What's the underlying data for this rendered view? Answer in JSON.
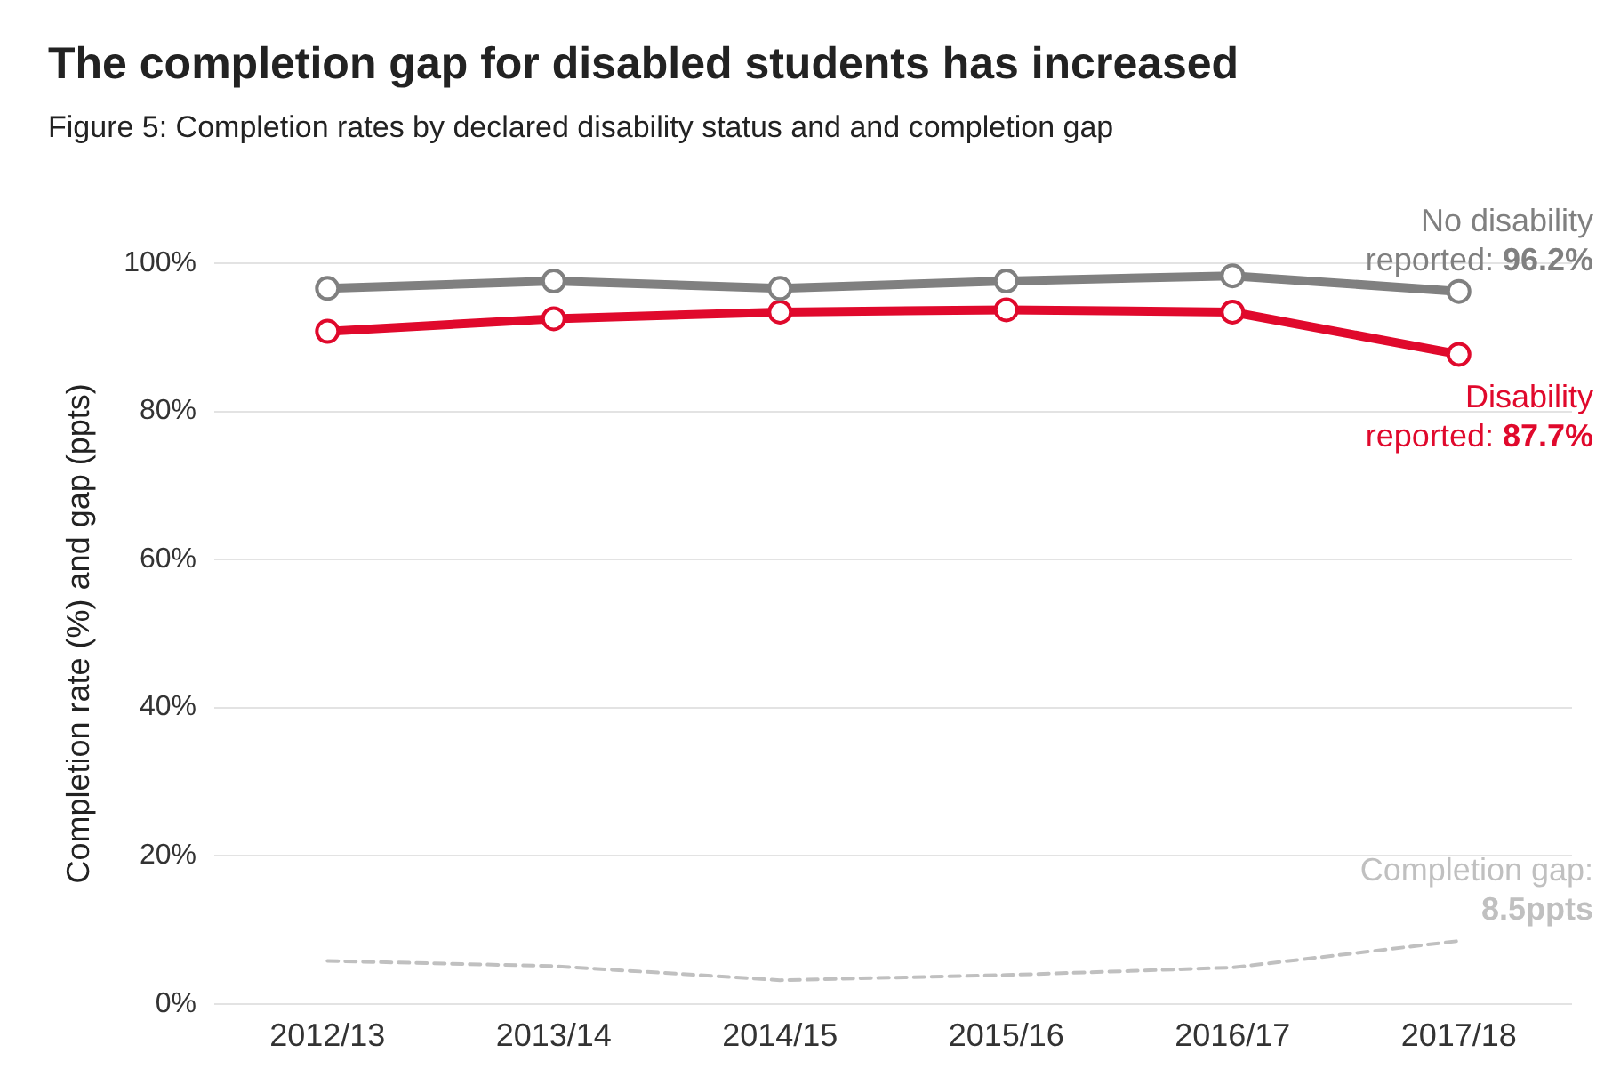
{
  "chart_data": {
    "type": "line",
    "title": "The completion gap for disabled students has increased",
    "subtitle": "Figure 5: Completion rates by declared disability status and and completion gap",
    "ylabel": "Completion rate (%) and gap (ppts)",
    "categories": [
      "2012/13",
      "2013/14",
      "2014/15",
      "2015/16",
      "2016/17",
      "2017/18"
    ],
    "series": [
      {
        "name": "No disability reported:",
        "color": "#808080",
        "marker": "circle",
        "line_style": "solid",
        "values": [
          96.6,
          97.6,
          96.6,
          97.6,
          98.3,
          96.2
        ],
        "value_labels": [
          null,
          null,
          null,
          null,
          null,
          "96.2%"
        ]
      },
      {
        "name": "Disability reported:",
        "color": "#e0092c",
        "marker": "circle",
        "line_style": "solid",
        "values": [
          90.8,
          92.5,
          93.4,
          93.7,
          93.4,
          87.7
        ],
        "value_labels": [
          null,
          null,
          null,
          null,
          null,
          "87.7%"
        ]
      },
      {
        "name": "Completion gap:",
        "color": "#c0c0c0",
        "marker": "none",
        "line_style": "dashed",
        "values": [
          5.8,
          5.1,
          3.2,
          3.9,
          4.9,
          8.5
        ],
        "value_labels": [
          null,
          null,
          null,
          null,
          null,
          "8.5ppts"
        ]
      }
    ],
    "ylim": [
      0,
      100
    ],
    "yticks": [
      {
        "value": 0,
        "label": "0%"
      },
      {
        "value": 20,
        "label": "20%"
      },
      {
        "value": 40,
        "label": "40%"
      },
      {
        "value": 60,
        "label": "60%"
      },
      {
        "value": 80,
        "label": "80%"
      },
      {
        "value": 100,
        "label": "100%"
      }
    ],
    "grid": "y",
    "legend": false
  }
}
